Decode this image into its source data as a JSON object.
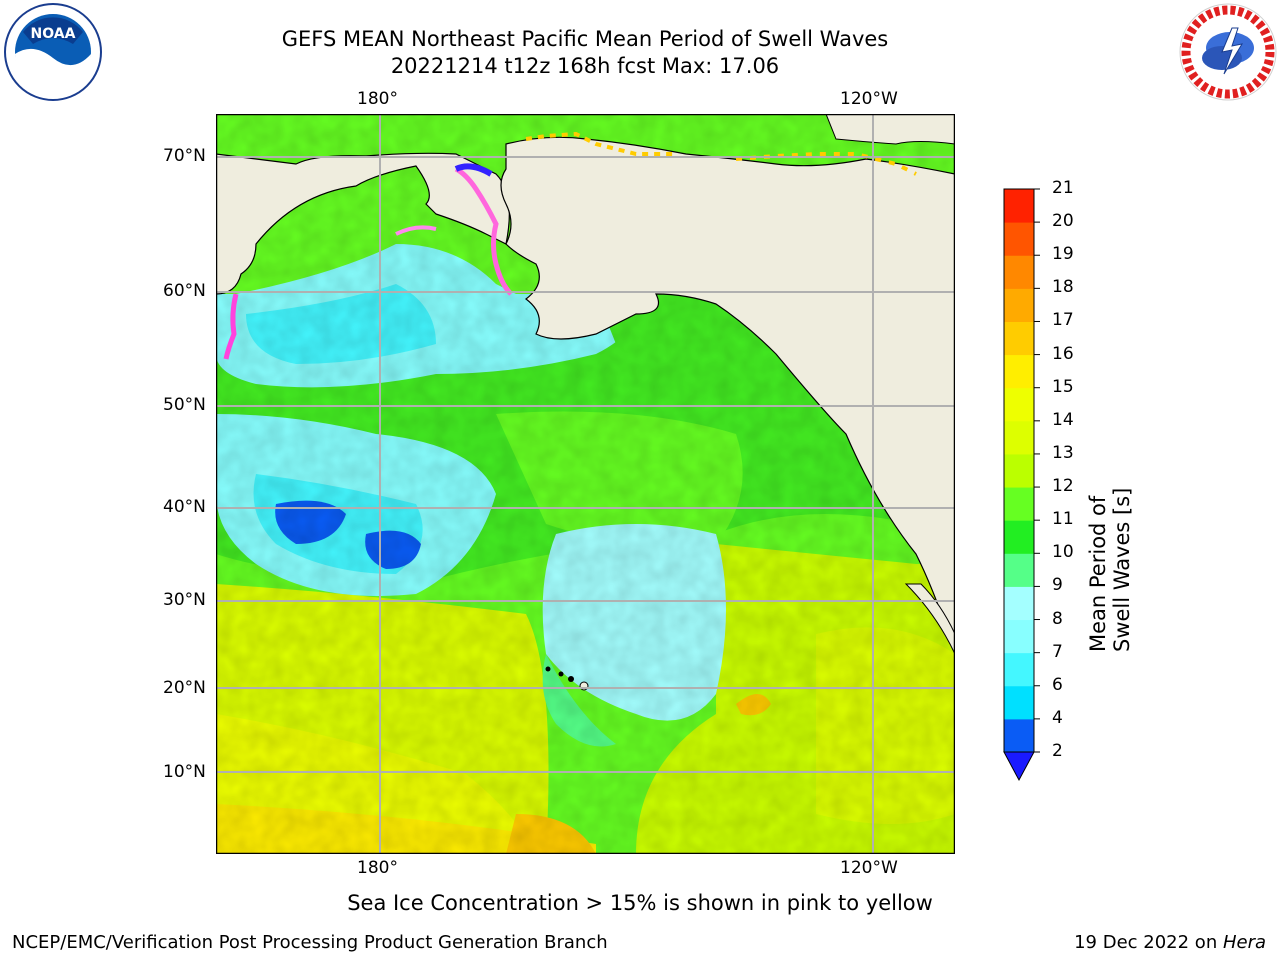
{
  "header": {
    "title_line1": "GEFS MEAN Northeast Pacific Mean Period of Swell Waves",
    "title_line2": "20221214 t12z 168h fcst   Max: 17.06"
  },
  "logos": {
    "left": "noaa-logo",
    "right": "nws-logo"
  },
  "map": {
    "lat_labels": [
      "70°N",
      "60°N",
      "50°N",
      "40°N",
      "30°N",
      "20°N",
      "10°N"
    ],
    "lon_labels_top": [
      "180°",
      "120°W"
    ],
    "lon_labels_bottom": [
      "180°",
      "120°W"
    ],
    "land_color": "#efedde",
    "grid_color": "#b0b0b0"
  },
  "colorbar": {
    "label": "Mean Period of Swell Waves [s]",
    "ticks": [
      "2",
      "4",
      "6",
      "7",
      "8",
      "9",
      "10",
      "11",
      "12",
      "13",
      "14",
      "15",
      "16",
      "17",
      "18",
      "19",
      "20",
      "21"
    ],
    "colors": [
      "#0a5cf5",
      "#00e0ff",
      "#44f7ff",
      "#88ffff",
      "#a4ffff",
      "#55ff88",
      "#22ee22",
      "#66ff22",
      "#bbff00",
      "#ddff00",
      "#eeff00",
      "#ffee00",
      "#ffcc00",
      "#ffaa00",
      "#ff8800",
      "#ff5500",
      "#ff2200"
    ],
    "extend_color": "#1a1aff"
  },
  "note": "Sea Ice Concentration > 15% is shown in pink to yellow",
  "footer": {
    "left": "NCEP/EMC/Verification Post Processing Product Generation Branch",
    "right_prefix": "19 Dec 2022 on ",
    "right_host": "Hera"
  }
}
